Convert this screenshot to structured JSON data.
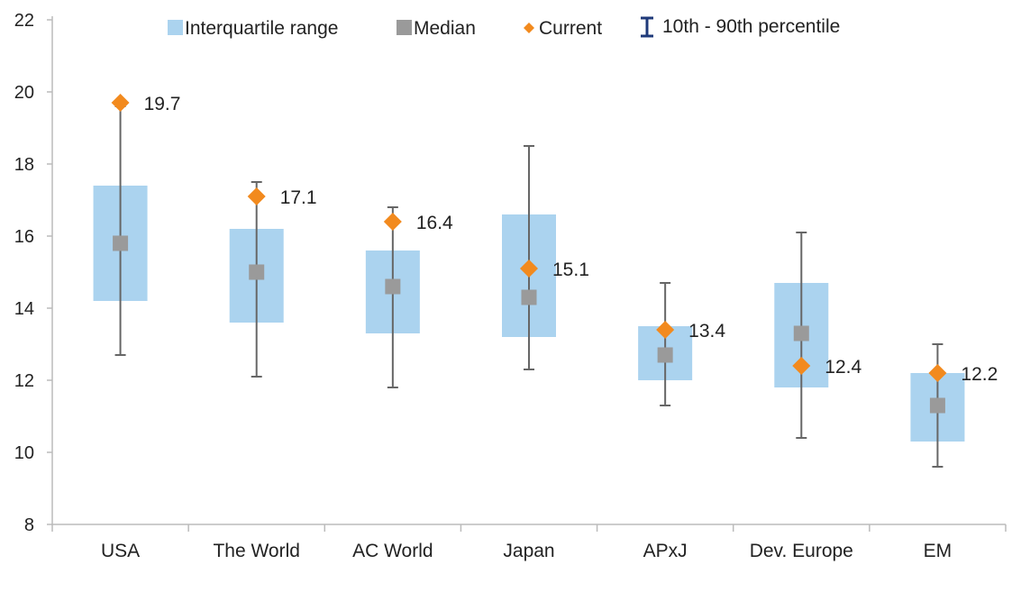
{
  "chart_data": {
    "type": "box",
    "categories": [
      "USA",
      "The World",
      "AC World",
      "Japan",
      "APxJ",
      "Dev. Europe",
      "EM"
    ],
    "series": [
      {
        "name": "Interquartile range",
        "q1": [
          14.2,
          13.6,
          13.3,
          13.2,
          12.0,
          11.8,
          10.3
        ],
        "q3": [
          17.4,
          16.2,
          15.6,
          16.6,
          13.5,
          14.7,
          12.2
        ]
      },
      {
        "name": "Median",
        "values": [
          15.8,
          15.0,
          14.6,
          14.3,
          12.7,
          13.3,
          11.3
        ]
      },
      {
        "name": "Current",
        "values": [
          19.7,
          17.1,
          16.4,
          15.1,
          13.4,
          12.4,
          12.2
        ]
      },
      {
        "name": "10th - 90th percentile",
        "p10": [
          12.7,
          12.1,
          11.8,
          12.3,
          11.3,
          10.4,
          9.6
        ],
        "p90": [
          19.6,
          17.5,
          16.8,
          18.5,
          14.7,
          16.1,
          13.0
        ]
      }
    ],
    "data_labels": [
      "19.7",
      "17.1",
      "16.4",
      "15.1",
      "13.4",
      "12.4",
      "12.2"
    ],
    "ylim": [
      8,
      22
    ],
    "yticks": [
      8,
      10,
      12,
      14,
      16,
      18,
      20,
      22
    ],
    "legend_position": "top",
    "grid": false
  },
  "colors": {
    "iqr": "#abd3ef",
    "median": "#9a9a9a",
    "current": "#f28a1e",
    "whisker": "#666666",
    "legend_whisker": "#1f3a7a",
    "axis": "#bbbbbb"
  }
}
